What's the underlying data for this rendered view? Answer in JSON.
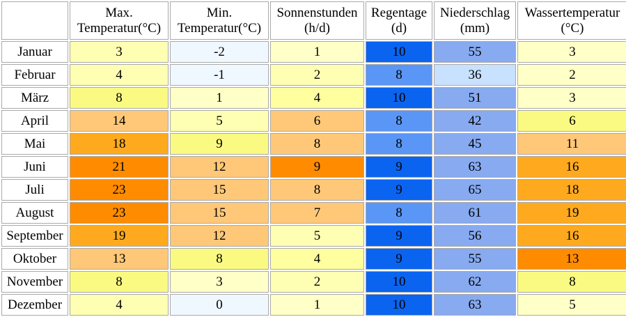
{
  "headers": [
    {
      "line1": "Max.",
      "line2": "Temperatur(°C)"
    },
    {
      "line1": "Min.",
      "line2": "Temperatur(°C)"
    },
    {
      "line1": "Sonnenstunden",
      "line2": "(h/d)"
    },
    {
      "line1": "Regentage",
      "line2": "(d)"
    },
    {
      "line1": "Niederschlag",
      "line2": "(mm)"
    },
    {
      "line1": "Wassertemperatur",
      "line2": "(°C)"
    }
  ],
  "rows": [
    {
      "month": "Januar",
      "cells": [
        {
          "v": "3",
          "c": "#ffffb4"
        },
        {
          "v": "-2",
          "c": "#f0f8ff"
        },
        {
          "v": "1",
          "c": "#ffffc8"
        },
        {
          "v": "10",
          "c": "#0a64f0"
        },
        {
          "v": "55",
          "c": "#87aaf0"
        },
        {
          "v": "3",
          "c": "#ffffc8"
        }
      ]
    },
    {
      "month": "Februar",
      "cells": [
        {
          "v": "4",
          "c": "#ffffb4"
        },
        {
          "v": "-1",
          "c": "#f0f8ff"
        },
        {
          "v": "2",
          "c": "#ffffb4"
        },
        {
          "v": "8",
          "c": "#5a96f5"
        },
        {
          "v": "36",
          "c": "#c8e1ff"
        },
        {
          "v": "2",
          "c": "#ffffc8"
        }
      ]
    },
    {
      "month": "März",
      "cells": [
        {
          "v": "8",
          "c": "#fafa82"
        },
        {
          "v": "1",
          "c": "#ffffc8"
        },
        {
          "v": "4",
          "c": "#ffffa0"
        },
        {
          "v": "10",
          "c": "#0a64f0"
        },
        {
          "v": "51",
          "c": "#87aaf0"
        },
        {
          "v": "3",
          "c": "#ffffc8"
        }
      ]
    },
    {
      "month": "April",
      "cells": [
        {
          "v": "14",
          "c": "#ffc878"
        },
        {
          "v": "5",
          "c": "#ffffb4"
        },
        {
          "v": "6",
          "c": "#ffc878"
        },
        {
          "v": "8",
          "c": "#5a96f5"
        },
        {
          "v": "42",
          "c": "#87aaf0"
        },
        {
          "v": "6",
          "c": "#fafa82"
        }
      ]
    },
    {
      "month": "Mai",
      "cells": [
        {
          "v": "18",
          "c": "#ffaa1e"
        },
        {
          "v": "9",
          "c": "#fafa82"
        },
        {
          "v": "8",
          "c": "#ffc878"
        },
        {
          "v": "8",
          "c": "#5a96f5"
        },
        {
          "v": "45",
          "c": "#87aaf0"
        },
        {
          "v": "11",
          "c": "#ffc878"
        }
      ]
    },
    {
      "month": "Juni",
      "cells": [
        {
          "v": "21",
          "c": "#ff8c00"
        },
        {
          "v": "12",
          "c": "#ffc878"
        },
        {
          "v": "9",
          "c": "#ff8c00"
        },
        {
          "v": "9",
          "c": "#0a64f0"
        },
        {
          "v": "63",
          "c": "#87aaf0"
        },
        {
          "v": "16",
          "c": "#ffaa1e"
        }
      ]
    },
    {
      "month": "Juli",
      "cells": [
        {
          "v": "23",
          "c": "#ff8c00"
        },
        {
          "v": "15",
          "c": "#ffc878"
        },
        {
          "v": "8",
          "c": "#ffc878"
        },
        {
          "v": "9",
          "c": "#0a64f0"
        },
        {
          "v": "65",
          "c": "#87aaf0"
        },
        {
          "v": "18",
          "c": "#ffaa1e"
        }
      ]
    },
    {
      "month": "August",
      "cells": [
        {
          "v": "23",
          "c": "#ff8c00"
        },
        {
          "v": "15",
          "c": "#ffc878"
        },
        {
          "v": "7",
          "c": "#ffc878"
        },
        {
          "v": "8",
          "c": "#5a96f5"
        },
        {
          "v": "61",
          "c": "#87aaf0"
        },
        {
          "v": "19",
          "c": "#ffaa1e"
        }
      ]
    },
    {
      "month": "September",
      "cells": [
        {
          "v": "19",
          "c": "#ffaa1e"
        },
        {
          "v": "12",
          "c": "#ffc878"
        },
        {
          "v": "5",
          "c": "#ffffb4"
        },
        {
          "v": "9",
          "c": "#0a64f0"
        },
        {
          "v": "56",
          "c": "#87aaf0"
        },
        {
          "v": "16",
          "c": "#ffaa1e"
        }
      ]
    },
    {
      "month": "Oktober",
      "cells": [
        {
          "v": "13",
          "c": "#ffc878"
        },
        {
          "v": "8",
          "c": "#fafa82"
        },
        {
          "v": "4",
          "c": "#ffffa0"
        },
        {
          "v": "9",
          "c": "#0a64f0"
        },
        {
          "v": "55",
          "c": "#87aaf0"
        },
        {
          "v": "13",
          "c": "#ff8c00"
        }
      ]
    },
    {
      "month": "November",
      "cells": [
        {
          "v": "8",
          "c": "#fafa82"
        },
        {
          "v": "3",
          "c": "#ffffc8"
        },
        {
          "v": "2",
          "c": "#ffffb4"
        },
        {
          "v": "10",
          "c": "#0a64f0"
        },
        {
          "v": "62",
          "c": "#87aaf0"
        },
        {
          "v": "8",
          "c": "#fafa82"
        }
      ]
    },
    {
      "month": "Dezember",
      "cells": [
        {
          "v": "4",
          "c": "#ffffb4"
        },
        {
          "v": "0",
          "c": "#f0f8ff"
        },
        {
          "v": "1",
          "c": "#ffffc8"
        },
        {
          "v": "10",
          "c": "#0a64f0"
        },
        {
          "v": "63",
          "c": "#87aaf0"
        },
        {
          "v": "5",
          "c": "#ffffc8"
        }
      ]
    }
  ]
}
